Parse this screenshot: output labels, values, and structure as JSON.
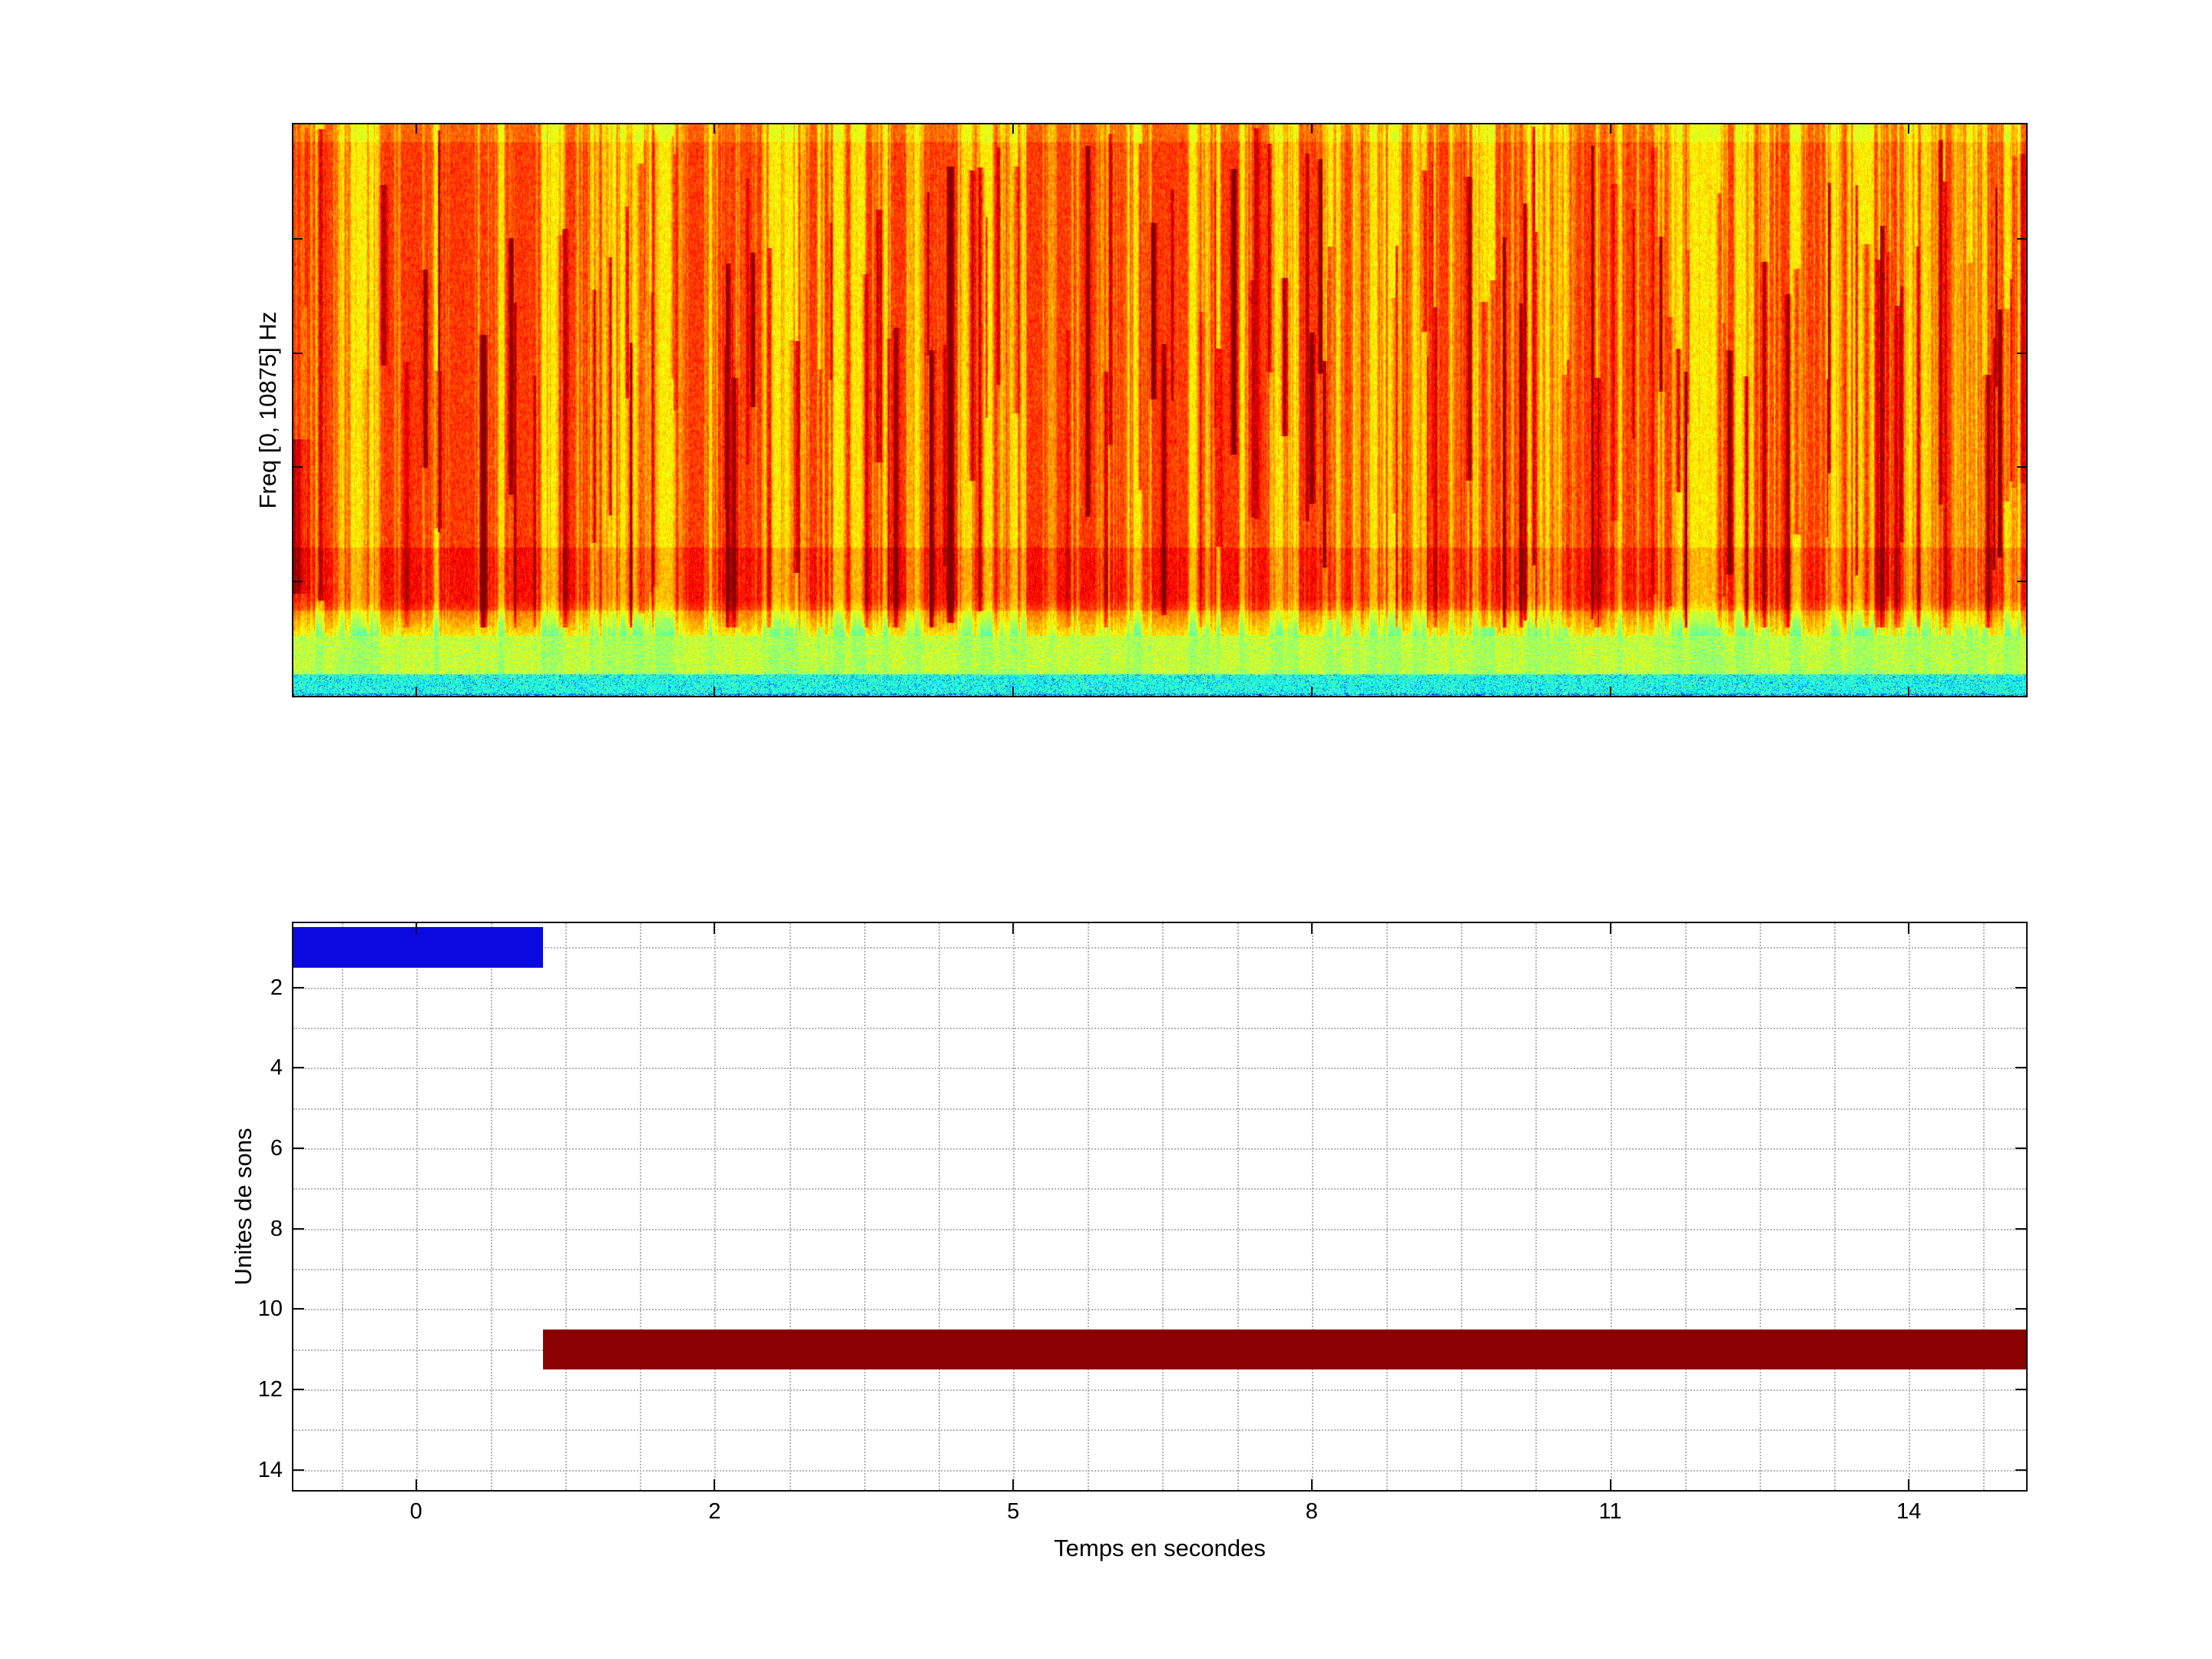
{
  "figure": {
    "background_color": "#ffffff"
  },
  "chart_data": [
    {
      "type": "heatmap",
      "subtype": "spectrogram",
      "title": "",
      "ylabel": "Freq [0, 10875] Hz",
      "freq_range_hz": [
        0,
        10875
      ],
      "colormap": "jet",
      "palette": {
        "high_energy": "#d10000",
        "mid_energy": "#ff9400",
        "low_energy": "#ffe800",
        "band_low_freq": "#a8e830",
        "band_floor": "#22d4c0",
        "floor_specks": "#1030e0"
      },
      "content_note": "Broadband orange/yellow energy with many vertical red call streaks; yellow-green noise band near the bottom frequencies and a thin cyan band with blue specks at the lowest frequencies"
    },
    {
      "type": "bar",
      "orientation": "horizontal",
      "xlabel": "Temps en secondes",
      "ylabel": "Unites de sons",
      "xtick_values": [
        0,
        2,
        5,
        8,
        11,
        14
      ],
      "xtick_labels": [
        "0",
        "2",
        "5",
        "8",
        "11",
        "14"
      ],
      "ytick_values": [
        2,
        4,
        6,
        8,
        10,
        12,
        14
      ],
      "ytick_labels": [
        "2",
        "4",
        "6",
        "8",
        "10",
        "12",
        "14"
      ],
      "ylim": [
        0.4,
        14.5
      ],
      "y_axis_reversed": true,
      "grid_style": "dotted",
      "grid_color": "#b4b4be",
      "bars": [
        {
          "unit": 1,
          "start_s": -0.9,
          "end_s": 0.85,
          "color": "#0a0ae0"
        },
        {
          "unit": 11,
          "start_s": 0.85,
          "end_s": 15.7,
          "color": "#8b0000"
        }
      ]
    }
  ]
}
